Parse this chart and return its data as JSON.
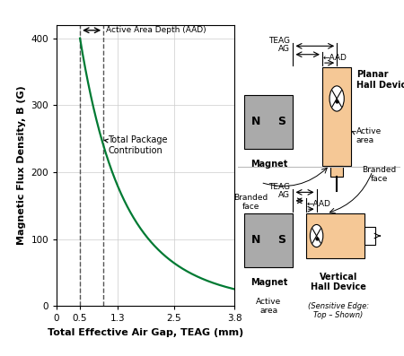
{
  "ylabel": "Magnetic Flux Density, B (G)",
  "xlabel": "Total Effective Air Gap, TEAG (mm)",
  "xlim": [
    0,
    3.8
  ],
  "ylim": [
    0,
    420
  ],
  "curve_color": "#007A33",
  "dashed_color": "#555555",
  "dashed_x1": 0.5,
  "dashed_x2": 1.0,
  "aad_label": "Active Area Depth (AAD)",
  "annotation_text": "Total Package\nContribution",
  "background_color": "#ffffff",
  "grid_color": "#cccccc",
  "magnet_color": "#aaaaaa",
  "device_color": "#f5c896",
  "text_color": "#000000"
}
